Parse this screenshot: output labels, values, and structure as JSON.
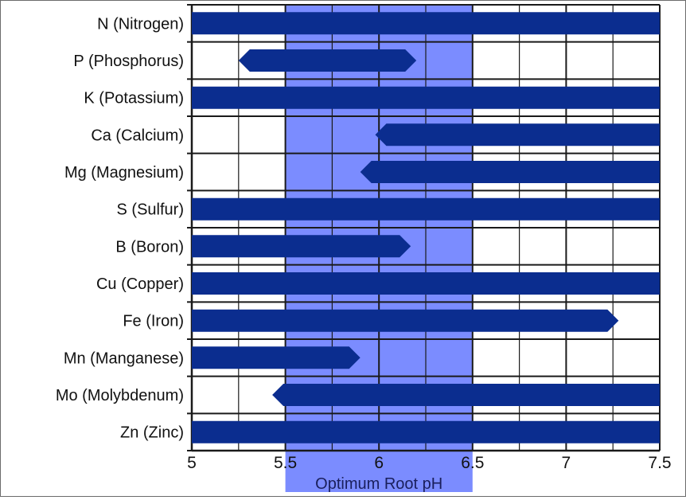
{
  "chart_data": {
    "type": "bar",
    "xlabel": "",
    "xlim": [
      5,
      7.5
    ],
    "xticks": [
      "5",
      "5.5",
      "6",
      "6.5",
      "7",
      "7.5"
    ],
    "optimum_band": {
      "from": 5.5,
      "to": 6.5,
      "label": "Optimum Root pH"
    },
    "nutrients": [
      {
        "label": "N (Nitrogen)",
        "start": 5.0,
        "end": 7.5
      },
      {
        "label": "P (Phosphorus)",
        "start": 5.25,
        "end": 6.2
      },
      {
        "label": "K (Potassium)",
        "start": 5.0,
        "end": 7.5
      },
      {
        "label": "Ca (Calcium)",
        "start": 5.98,
        "end": 7.5
      },
      {
        "label": "Mg (Magnesium)",
        "start": 5.9,
        "end": 7.5
      },
      {
        "label": "S (Sulfur)",
        "start": 5.0,
        "end": 7.5
      },
      {
        "label": "B (Boron)",
        "start": 5.0,
        "end": 6.17
      },
      {
        "label": "Cu (Copper)",
        "start": 5.0,
        "end": 7.5
      },
      {
        "label": "Fe (Iron)",
        "start": 5.0,
        "end": 7.28
      },
      {
        "label": "Mn (Manganese)",
        "start": 5.0,
        "end": 5.9
      },
      {
        "label": "Mo (Molybdenum)",
        "start": 5.43,
        "end": 7.5
      },
      {
        "label": "Zn (Zinc)",
        "start": 5.0,
        "end": 7.5
      }
    ],
    "colors": {
      "bar": "#0b2d8f",
      "optimum_band": "#7b8cff",
      "grid": "#1a1a1a"
    },
    "grid": true
  }
}
